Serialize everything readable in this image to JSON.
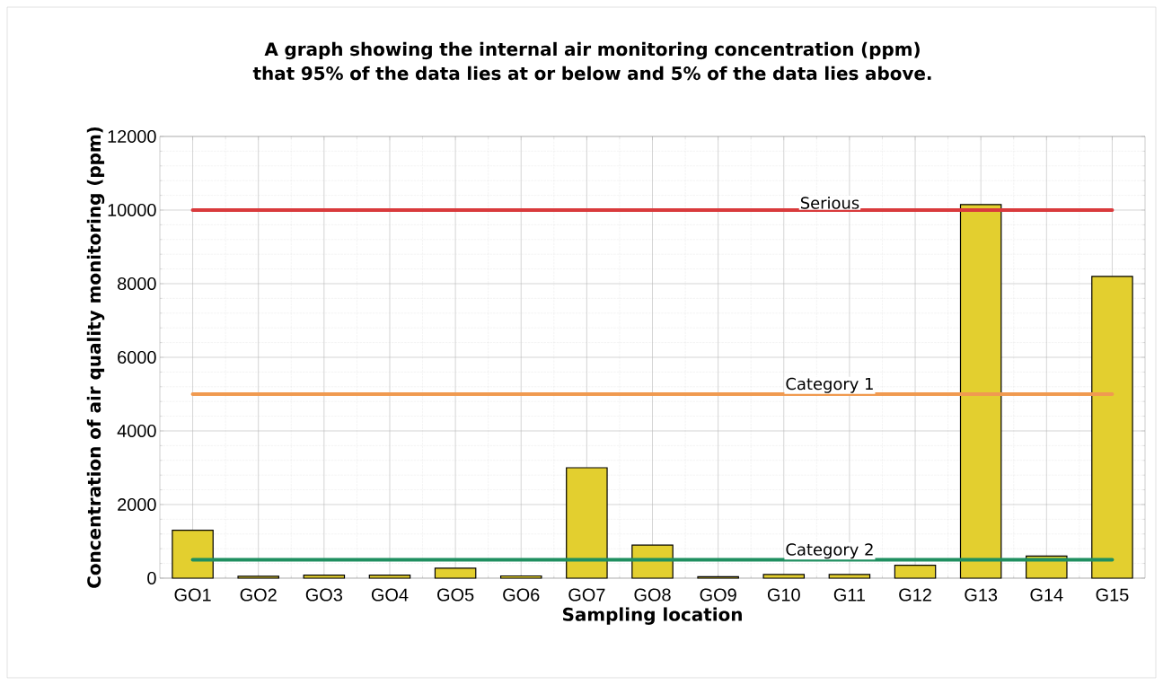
{
  "chart_data": {
    "type": "bar",
    "title": "A graph showing the internal air monitoring concentration (ppm) that 95% of the data lies at or below and 5% of the data lies above.",
    "xlabel": "Sampling location",
    "ylabel": "Concentration of air quality monitoring  (ppm)",
    "categories": [
      "GO1",
      "GO2",
      "GO3",
      "GO4",
      "GO5",
      "GO6",
      "GO7",
      "GO8",
      "GO9",
      "G10",
      "G11",
      "G12",
      "G13",
      "G14",
      "G15"
    ],
    "values": [
      1300,
      50,
      80,
      80,
      270,
      60,
      3000,
      900,
      40,
      100,
      100,
      350,
      10150,
      600,
      8200
    ],
    "color": "#e3cf2f",
    "ylim": [
      0,
      12000
    ],
    "yticks": [
      0,
      2000,
      4000,
      6000,
      8000,
      10000,
      12000
    ],
    "grid": true,
    "ref_lines": [
      {
        "axis": "y",
        "value": 10000,
        "label": "Serious",
        "color": "#d93a3c"
      },
      {
        "axis": "y",
        "value": 5000,
        "label": "Category 1",
        "color": "#f09a50"
      },
      {
        "axis": "y",
        "value": 500,
        "label": "Category 2",
        "color": "#1f8f60"
      }
    ]
  }
}
